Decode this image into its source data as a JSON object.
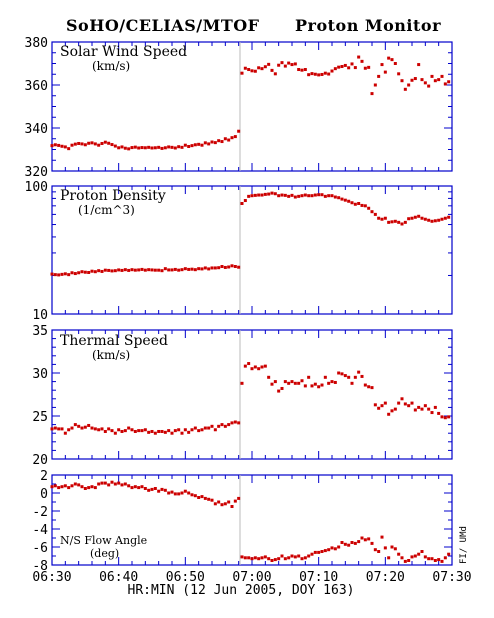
{
  "header": {
    "left_title": "SoHO/CELIAS/MTOF",
    "right_title": "Proton Monitor"
  },
  "x_axis": {
    "label": "HR:MIN (12 Jun 2005, DOY 163)",
    "tick_labels": [
      "06:30",
      "06:40",
      "06:50",
      "07:00",
      "07:10",
      "07:20",
      "07:30"
    ],
    "range_minutes": [
      0,
      60
    ],
    "tick_minutes": [
      0,
      10,
      20,
      30,
      40,
      50,
      60
    ],
    "shock_line_minute": 28.2
  },
  "credit": "FI/ UMd",
  "colors": {
    "axes": "#0000cc",
    "data": "#cc0000",
    "shock_line": "#bbbbbb",
    "text": "#000000"
  },
  "chart_data": [
    {
      "id": "speed",
      "type": "scatter",
      "title": "Solar Wind Speed",
      "ylabel": "(km/s)",
      "ylim": [
        320,
        380
      ],
      "log": false,
      "ytick_values": [
        320,
        340,
        360,
        380
      ],
      "ytick_labels": [
        "320",
        "340",
        "360",
        "380"
      ],
      "minor_step": 5,
      "x": [
        0.0,
        0.5,
        1.0,
        1.5,
        2.0,
        2.5,
        3.0,
        3.5,
        4.0,
        4.5,
        5.0,
        5.5,
        6.0,
        6.5,
        7.0,
        7.5,
        8.0,
        8.5,
        9.0,
        9.5,
        10.0,
        10.5,
        11.0,
        11.5,
        12.0,
        12.5,
        13.0,
        13.5,
        14.0,
        14.5,
        15.0,
        15.5,
        16.0,
        16.5,
        17.0,
        17.5,
        18.0,
        18.5,
        19.0,
        19.5,
        20.0,
        20.5,
        21.0,
        21.5,
        22.0,
        22.5,
        23.0,
        23.5,
        24.0,
        24.5,
        25.0,
        25.5,
        26.0,
        26.5,
        27.0,
        27.5,
        28.0,
        28.5,
        29.0,
        29.5,
        30.0,
        30.5,
        31.0,
        31.5,
        32.0,
        32.5,
        33.0,
        33.5,
        34.0,
        34.5,
        35.0,
        35.5,
        36.0,
        36.5,
        37.0,
        37.5,
        38.0,
        38.5,
        39.0,
        39.5,
        40.0,
        40.5,
        41.0,
        41.5,
        42.0,
        42.5,
        43.0,
        43.5,
        44.0,
        44.5,
        45.0,
        45.5,
        46.0,
        46.5,
        47.0,
        47.5,
        48.0,
        48.5,
        49.0,
        49.5,
        50.0,
        50.5,
        51.0,
        51.5,
        52.0,
        52.5,
        53.0,
        53.5,
        54.0,
        54.5,
        55.0,
        55.5,
        56.0,
        56.5,
        57.0,
        57.5,
        58.0,
        58.5,
        59.0,
        59.5
      ],
      "y": [
        331.8,
        332.2,
        331.9,
        331.5,
        331.2,
        330.4,
        332.0,
        332.5,
        332.8,
        332.6,
        332.2,
        332.9,
        333.1,
        332.6,
        332.0,
        332.8,
        333.4,
        332.9,
        332.3,
        331.6,
        330.8,
        331.2,
        330.6,
        330.3,
        330.9,
        331.1,
        330.7,
        330.9,
        330.8,
        331.0,
        330.7,
        330.8,
        331.0,
        330.5,
        330.8,
        331.2,
        331.0,
        330.7,
        331.3,
        331.0,
        332.0,
        331.4,
        331.8,
        332.2,
        332.4,
        332.0,
        333.1,
        332.6,
        333.5,
        333.2,
        334.1,
        333.7,
        335.0,
        334.4,
        335.5,
        336.0,
        338.5,
        365.5,
        367.8,
        367.2,
        366.6,
        366.4,
        368.0,
        367.6,
        368.5,
        369.6,
        366.8,
        365.2,
        369.2,
        370.4,
        368.8,
        370.2,
        369.5,
        369.8,
        367.2,
        366.9,
        367.2,
        364.8,
        365.3,
        365.0,
        364.7,
        364.9,
        365.5,
        365.1,
        366.5,
        367.6,
        368.3,
        368.6,
        369.1,
        368.0,
        369.8,
        368.1,
        373.0,
        371.0,
        367.8,
        368.2,
        356.0,
        360.0,
        364.0,
        369.5,
        366.0,
        372.5,
        371.8,
        370.0,
        365.2,
        362.0,
        358.0,
        360.0,
        362.2,
        363.0,
        369.5,
        362.5,
        361.0,
        359.5,
        364.0,
        362.0,
        362.5,
        364.0,
        360.5,
        361.5
      ]
    },
    {
      "id": "density",
      "type": "scatter",
      "title": "Proton Density",
      "ylabel": "(1/cm^3)",
      "ylim": [
        10,
        100
      ],
      "log": true,
      "ytick_values": [
        10,
        100
      ],
      "ytick_labels": [
        "10",
        "100"
      ],
      "minor_values": [
        20,
        30,
        40,
        50,
        60,
        70,
        80,
        90
      ],
      "x": [
        0.0,
        0.5,
        1.0,
        1.5,
        2.0,
        2.5,
        3.0,
        3.5,
        4.0,
        4.5,
        5.0,
        5.5,
        6.0,
        6.5,
        7.0,
        7.5,
        8.0,
        8.5,
        9.0,
        9.5,
        10.0,
        10.5,
        11.0,
        11.5,
        12.0,
        12.5,
        13.0,
        13.5,
        14.0,
        14.5,
        15.0,
        15.5,
        16.0,
        16.5,
        17.0,
        17.5,
        18.0,
        18.5,
        19.0,
        19.5,
        20.0,
        20.5,
        21.0,
        21.5,
        22.0,
        22.5,
        23.0,
        23.5,
        24.0,
        24.5,
        25.0,
        25.5,
        26.0,
        26.5,
        27.0,
        27.5,
        28.0,
        28.5,
        29.0,
        29.5,
        30.0,
        30.5,
        31.0,
        31.5,
        32.0,
        32.5,
        33.0,
        33.5,
        34.0,
        34.5,
        35.0,
        35.5,
        36.0,
        36.5,
        37.0,
        37.5,
        38.0,
        38.5,
        39.0,
        39.5,
        40.0,
        40.5,
        41.0,
        41.5,
        42.0,
        42.5,
        43.0,
        43.5,
        44.0,
        44.5,
        45.0,
        45.5,
        46.0,
        46.5,
        47.0,
        47.5,
        48.0,
        48.5,
        49.0,
        49.5,
        50.0,
        50.5,
        51.0,
        51.5,
        52.0,
        52.5,
        53.0,
        53.5,
        54.0,
        54.5,
        55.0,
        55.5,
        56.0,
        56.5,
        57.0,
        57.5,
        58.0,
        58.5,
        59.0,
        59.5
      ],
      "y": [
        20.5,
        20.3,
        20.2,
        20.4,
        20.6,
        20.3,
        21.0,
        20.7,
        21.0,
        21.4,
        21.2,
        21.1,
        21.6,
        21.4,
        21.8,
        21.5,
        22.0,
        21.9,
        21.7,
        21.8,
        22.1,
        21.9,
        22.2,
        21.9,
        22.2,
        22.0,
        22.1,
        22.3,
        22.0,
        22.2,
        22.1,
        22.0,
        22.0,
        21.8,
        22.6,
        22.1,
        22.1,
        22.3,
        22.0,
        22.2,
        22.6,
        22.3,
        22.4,
        22.2,
        22.6,
        22.5,
        22.9,
        22.5,
        22.9,
        22.9,
        23.0,
        23.5,
        23.1,
        23.3,
        23.8,
        23.5,
        23.2,
        73.0,
        77.0,
        83.0,
        84.0,
        84.5,
        85.0,
        85.0,
        86.0,
        86.5,
        88.0,
        87.0,
        84.0,
        85.0,
        84.5,
        83.0,
        84.5,
        82.0,
        83.0,
        84.0,
        85.0,
        84.0,
        84.0,
        85.0,
        85.5,
        85.5,
        83.0,
        84.0,
        84.0,
        82.0,
        81.0,
        79.0,
        77.5,
        76.0,
        74.0,
        72.0,
        73.0,
        70.5,
        70.0,
        67.0,
        63.0,
        60.0,
        56.0,
        55.0,
        56.0,
        52.0,
        52.5,
        53.0,
        52.0,
        50.5,
        52.0,
        55.5,
        56.0,
        57.0,
        58.0,
        56.0,
        55.0,
        54.0,
        53.0,
        53.5,
        54.0,
        55.0,
        56.0,
        57.0
      ]
    },
    {
      "id": "thermal",
      "type": "scatter",
      "title": "Thermal Speed",
      "ylabel": "(km/s)",
      "ylim": [
        20,
        35
      ],
      "log": false,
      "ytick_values": [
        20,
        25,
        30,
        35
      ],
      "ytick_labels": [
        "20",
        "25",
        "30",
        "35"
      ],
      "minor_step": 1,
      "x": [
        0.0,
        0.5,
        1.0,
        1.5,
        2.0,
        2.5,
        3.0,
        3.5,
        4.0,
        4.5,
        5.0,
        5.5,
        6.0,
        6.5,
        7.0,
        7.5,
        8.0,
        8.5,
        9.0,
        9.5,
        10.0,
        10.5,
        11.0,
        11.5,
        12.0,
        12.5,
        13.0,
        13.5,
        14.0,
        14.5,
        15.0,
        15.5,
        16.0,
        16.5,
        17.0,
        17.5,
        18.0,
        18.5,
        19.0,
        19.5,
        20.0,
        20.5,
        21.0,
        21.5,
        22.0,
        22.5,
        23.0,
        23.5,
        24.0,
        24.5,
        25.0,
        25.5,
        26.0,
        26.5,
        27.0,
        27.5,
        28.0,
        28.5,
        29.0,
        29.5,
        30.0,
        30.5,
        31.0,
        31.5,
        32.0,
        32.5,
        33.0,
        33.5,
        34.0,
        34.5,
        35.0,
        35.5,
        36.0,
        36.5,
        37.0,
        37.5,
        38.0,
        38.5,
        39.0,
        39.5,
        40.0,
        40.5,
        41.0,
        41.5,
        42.0,
        42.5,
        43.0,
        43.5,
        44.0,
        44.5,
        45.0,
        45.5,
        46.0,
        46.5,
        47.0,
        47.5,
        48.0,
        48.5,
        49.0,
        49.5,
        50.0,
        50.5,
        51.0,
        51.5,
        52.0,
        52.5,
        53.0,
        53.5,
        54.0,
        54.5,
        55.0,
        55.5,
        56.0,
        56.5,
        57.0,
        57.5,
        58.0,
        58.5,
        59.0,
        59.5
      ],
      "y": [
        23.5,
        23.6,
        23.5,
        23.5,
        23.0,
        23.4,
        23.6,
        24.0,
        23.8,
        23.6,
        23.7,
        23.9,
        23.6,
        23.5,
        23.4,
        23.5,
        23.2,
        23.5,
        23.3,
        23.0,
        23.4,
        23.2,
        23.3,
        23.6,
        23.4,
        23.2,
        23.3,
        23.3,
        23.4,
        23.1,
        23.2,
        23.0,
        23.2,
        23.2,
        23.1,
        23.3,
        23.0,
        23.3,
        23.4,
        23.0,
        23.4,
        23.1,
        23.4,
        23.6,
        23.3,
        23.4,
        23.6,
        23.6,
        23.8,
        23.4,
        23.8,
        24.0,
        23.8,
        24.0,
        24.2,
        24.3,
        24.2,
        28.8,
        30.8,
        31.1,
        30.5,
        30.7,
        30.5,
        30.7,
        30.8,
        29.5,
        28.7,
        29.0,
        27.9,
        28.2,
        29.0,
        28.8,
        29.0,
        28.8,
        28.8,
        29.1,
        28.5,
        29.5,
        28.5,
        28.7,
        28.4,
        28.6,
        29.5,
        28.8,
        29.0,
        28.9,
        30.0,
        29.9,
        29.7,
        29.5,
        28.8,
        29.5,
        30.1,
        29.6,
        28.6,
        28.4,
        28.3,
        26.3,
        25.9,
        26.2,
        26.5,
        25.2,
        25.6,
        25.8,
        26.5,
        27.0,
        26.4,
        26.2,
        26.5,
        25.7,
        26.0,
        25.8,
        26.2,
        25.8,
        25.4,
        26.0,
        25.3,
        24.9,
        24.8,
        24.9
      ]
    },
    {
      "id": "flow",
      "type": "scatter",
      "title": "N/S Flow Angle",
      "ylabel": "(deg)",
      "ylim": [
        -8,
        2
      ],
      "log": false,
      "ytick_values": [
        -8,
        -6,
        -4,
        -2,
        0,
        2
      ],
      "ytick_labels": [
        "-8",
        "-6",
        "-4",
        "-2",
        "0",
        "2"
      ],
      "minor_step": 1,
      "x": [
        0.0,
        0.5,
        1.0,
        1.5,
        2.0,
        2.5,
        3.0,
        3.5,
        4.0,
        4.5,
        5.0,
        5.5,
        6.0,
        6.5,
        7.0,
        7.5,
        8.0,
        8.5,
        9.0,
        9.5,
        10.0,
        10.5,
        11.0,
        11.5,
        12.0,
        12.5,
        13.0,
        13.5,
        14.0,
        14.5,
        15.0,
        15.5,
        16.0,
        16.5,
        17.0,
        17.5,
        18.0,
        18.5,
        19.0,
        19.5,
        20.0,
        20.5,
        21.0,
        21.5,
        22.0,
        22.5,
        23.0,
        23.5,
        24.0,
        24.5,
        25.0,
        25.5,
        26.0,
        26.5,
        27.0,
        27.5,
        28.0,
        28.5,
        29.0,
        29.5,
        30.0,
        30.5,
        31.0,
        31.5,
        32.0,
        32.5,
        33.0,
        33.5,
        34.0,
        34.5,
        35.0,
        35.5,
        36.0,
        36.5,
        37.0,
        37.5,
        38.0,
        38.5,
        39.0,
        39.5,
        40.0,
        40.5,
        41.0,
        41.5,
        42.0,
        42.5,
        43.0,
        43.5,
        44.0,
        44.5,
        45.0,
        45.5,
        46.0,
        46.5,
        47.0,
        47.5,
        48.0,
        48.5,
        49.0,
        49.5,
        50.0,
        50.5,
        51.0,
        51.5,
        52.0,
        52.5,
        53.0,
        53.5,
        54.0,
        54.5,
        55.0,
        55.5,
        56.0,
        56.5,
        57.0,
        57.5,
        58.0,
        58.5,
        59.0,
        59.5
      ],
      "y": [
        0.7,
        0.8,
        0.6,
        0.7,
        0.8,
        0.6,
        0.8,
        1.0,
        0.9,
        0.7,
        0.5,
        0.6,
        0.7,
        0.6,
        1.0,
        1.1,
        1.1,
        0.9,
        1.2,
        1.0,
        1.1,
        0.9,
        1.0,
        0.8,
        0.6,
        0.7,
        0.6,
        0.7,
        0.5,
        0.3,
        0.4,
        0.5,
        0.2,
        0.4,
        0.3,
        0.0,
        0.1,
        -0.1,
        -0.1,
        0.0,
        0.2,
        0.0,
        -0.2,
        -0.3,
        -0.5,
        -0.4,
        -0.6,
        -0.7,
        -0.8,
        -1.2,
        -1.0,
        -1.3,
        -1.2,
        -1.0,
        -1.5,
        -0.9,
        -0.6,
        -7.1,
        -7.2,
        -7.2,
        -7.3,
        -7.2,
        -7.3,
        -7.2,
        -7.1,
        -7.3,
        -7.5,
        -7.4,
        -7.3,
        -7.0,
        -7.3,
        -7.2,
        -7.0,
        -7.1,
        -7.0,
        -7.3,
        -7.2,
        -7.0,
        -6.8,
        -6.6,
        -6.6,
        -6.5,
        -6.4,
        -6.3,
        -6.1,
        -6.2,
        -6.0,
        -5.5,
        -5.7,
        -5.8,
        -5.5,
        -5.6,
        -5.4,
        -5.0,
        -5.2,
        -5.1,
        -5.6,
        -6.3,
        -6.5,
        -4.9,
        -6.1,
        -7.2,
        -6.0,
        -6.2,
        -6.8,
        -7.2,
        -7.6,
        -7.5,
        -7.1,
        -7.0,
        -6.8,
        -6.5,
        -7.1,
        -7.3,
        -7.3,
        -7.5,
        -7.4,
        -7.6,
        -7.2,
        -6.8
      ]
    }
  ]
}
